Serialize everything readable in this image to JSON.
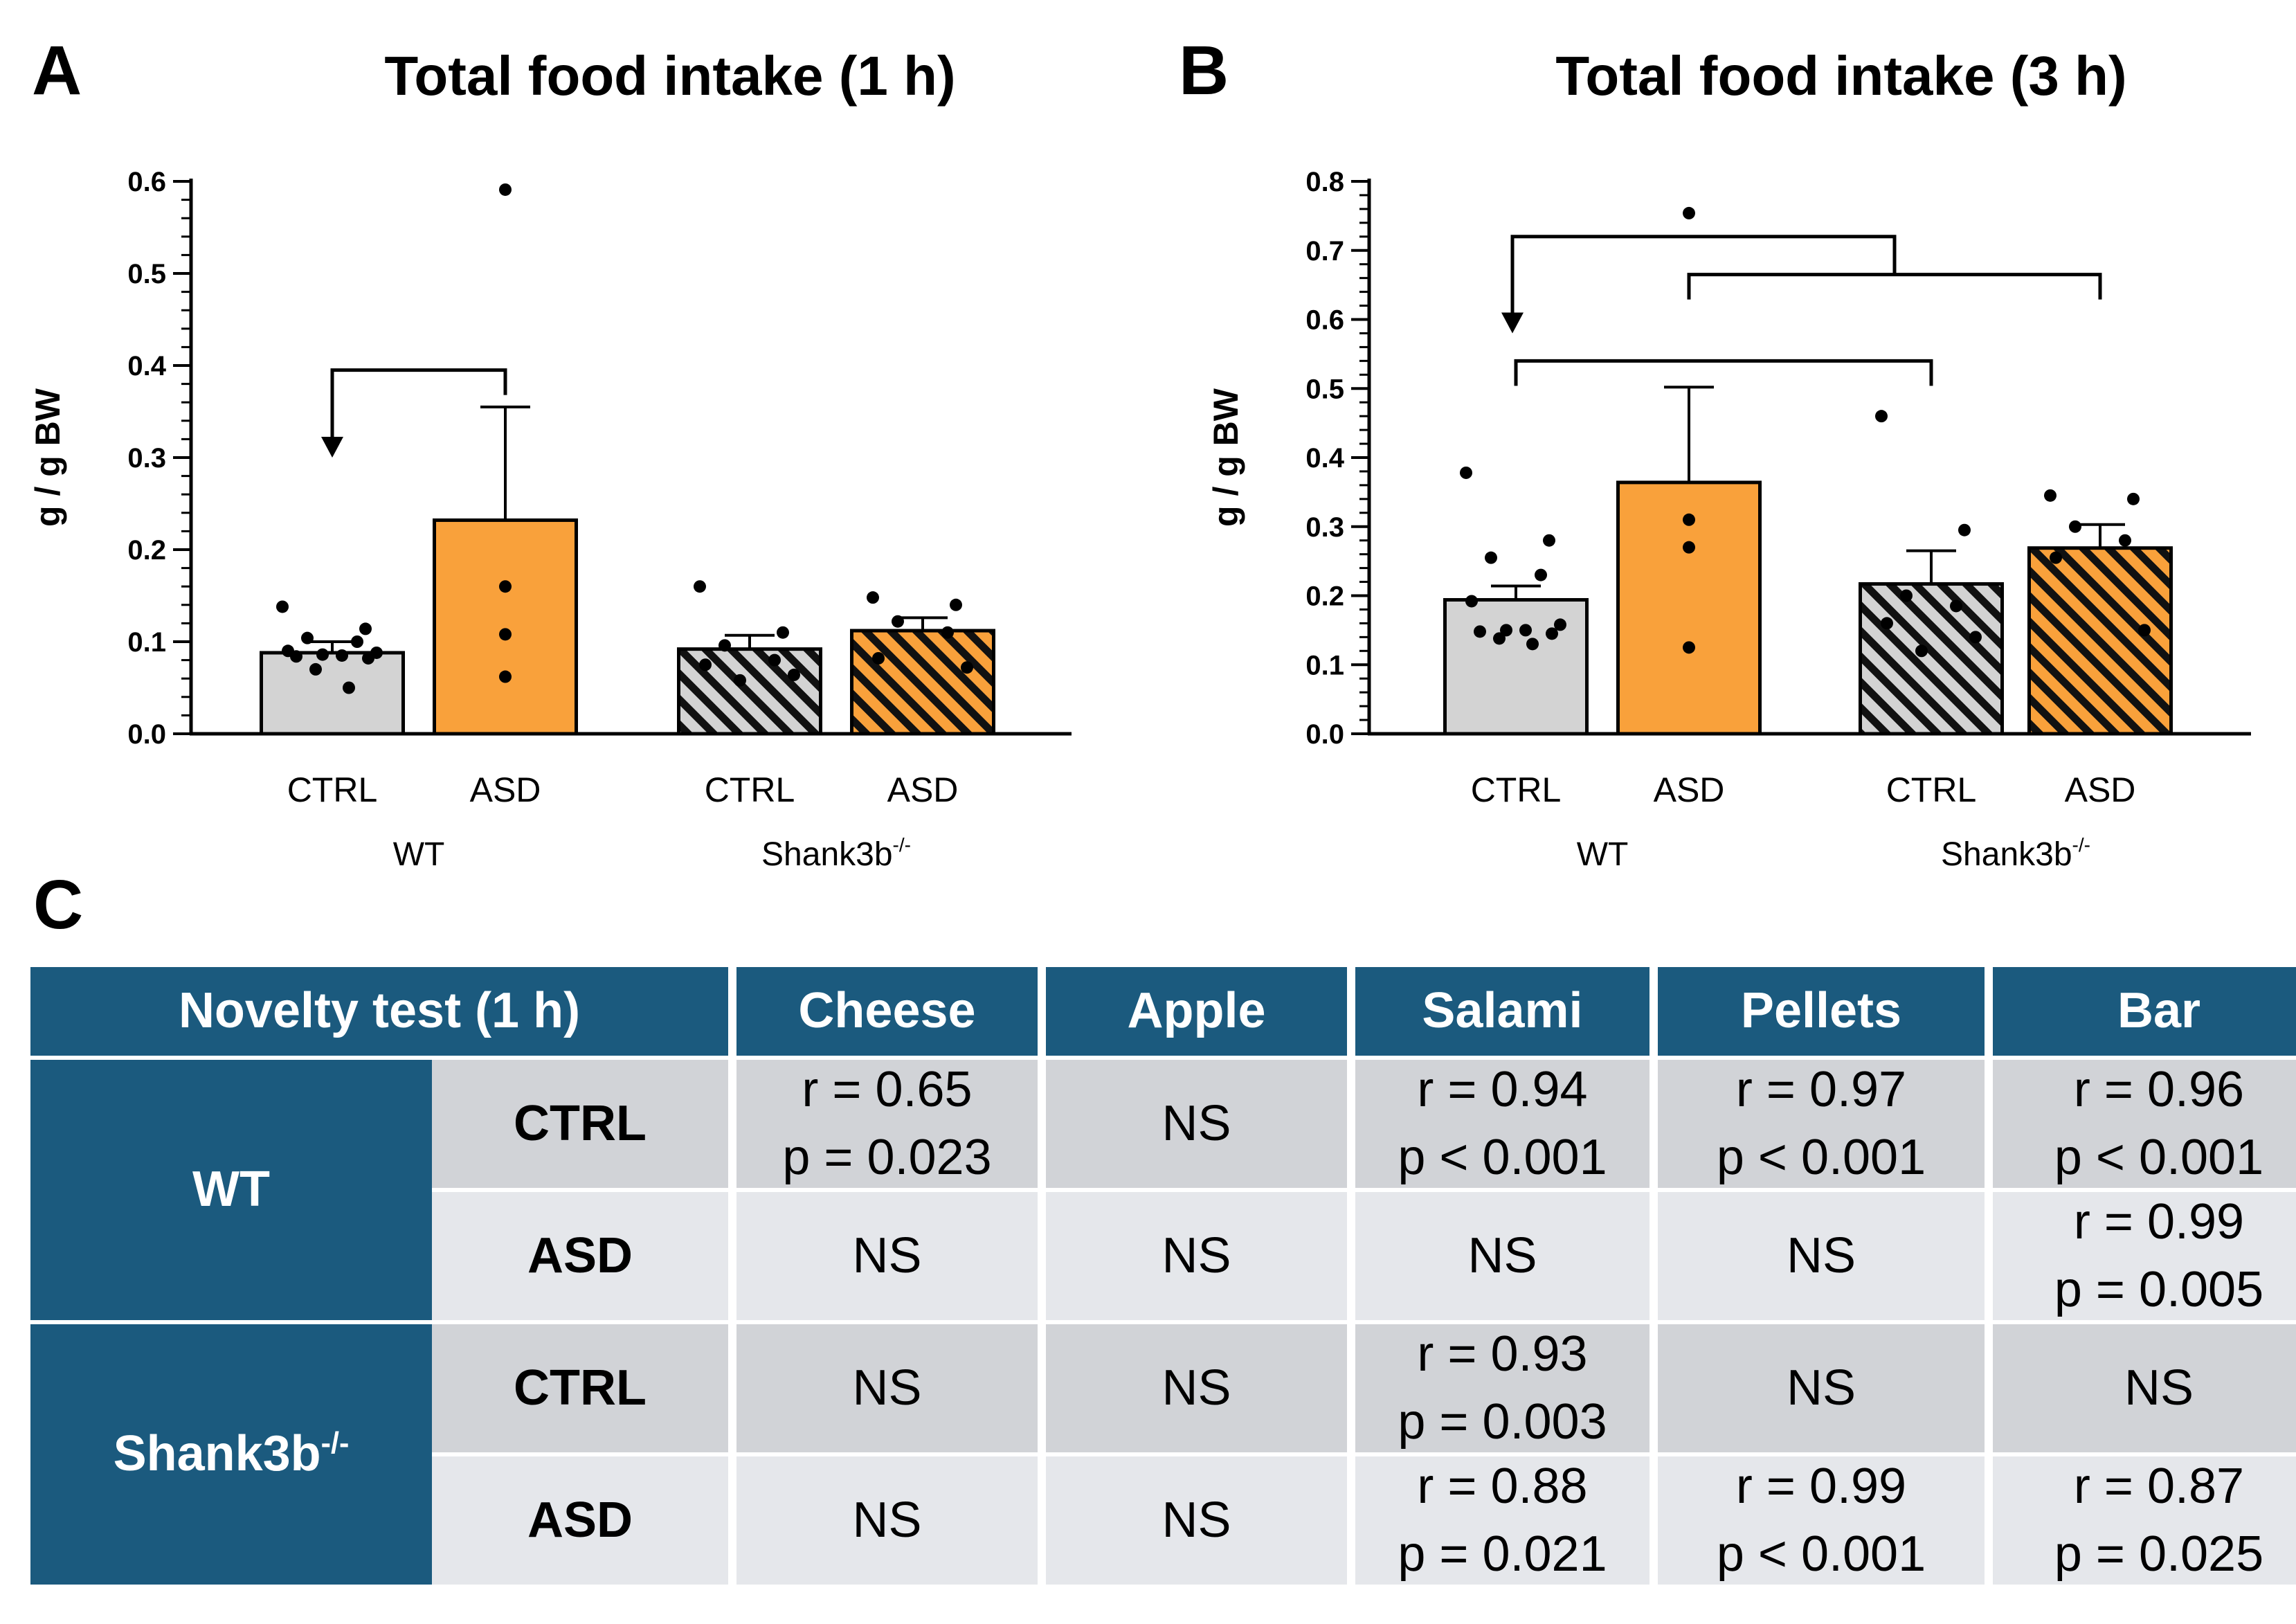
{
  "panels": {
    "a_label": "A",
    "b_label": "B",
    "c_label": "C"
  },
  "chart_data": [
    {
      "type": "bar",
      "panel": "A",
      "title": "Total food intake (1 h)",
      "ylabel": "g / g BW",
      "ylim": [
        0,
        0.6
      ],
      "yticks": [
        0.0,
        0.1,
        0.2,
        0.3,
        0.4,
        0.5,
        0.6
      ],
      "ytick_labels": [
        "0.0",
        "0.1",
        "0.2",
        "0.3",
        "0.4",
        "0.5",
        "0.6"
      ],
      "categories": [
        "CTRL",
        "ASD",
        "CTRL",
        "ASD"
      ],
      "groups": [
        {
          "label": "WT",
          "superscript": ""
        },
        {
          "label": "Shank3b",
          "superscript": "-/-"
        }
      ],
      "values": [
        0.088,
        0.232,
        0.092,
        0.112
      ],
      "errors": [
        0.012,
        0.123,
        0.015,
        0.014
      ],
      "points": [
        [
          0.138,
          0.114,
          0.104,
          0.1,
          0.09,
          0.088,
          0.086,
          0.085,
          0.084,
          0.082,
          0.07,
          0.05
        ],
        [
          0.591,
          0.16,
          0.108,
          0.062
        ],
        [
          0.16,
          0.11,
          0.096,
          0.08,
          0.075,
          0.064,
          0.058
        ],
        [
          0.148,
          0.14,
          0.122,
          0.11,
          0.082,
          0.072
        ]
      ],
      "fills": [
        "#d3d3d3",
        "#f9a13b",
        "#d3d3d3",
        "#f9a13b"
      ],
      "hatched": [
        false,
        false,
        true,
        true
      ],
      "annotations": [
        {
          "type": "bracket-arrow",
          "from_category": 1,
          "to_category": 0,
          "level": 0.395,
          "arrow_tip": 0.3
        }
      ]
    },
    {
      "type": "bar",
      "panel": "B",
      "title": "Total food intake (3 h)",
      "ylabel": "g / g BW",
      "ylim": [
        0,
        0.8
      ],
      "yticks": [
        0.0,
        0.1,
        0.2,
        0.3,
        0.4,
        0.5,
        0.6,
        0.7,
        0.8
      ],
      "ytick_labels": [
        "0.0",
        "0.1",
        "0.2",
        "0.3",
        "0.4",
        "0.5",
        "0.6",
        "0.7",
        "0.8"
      ],
      "categories": [
        "CTRL",
        "ASD",
        "CTRL",
        "ASD"
      ],
      "groups": [
        {
          "label": "WT",
          "superscript": ""
        },
        {
          "label": "Shank3b",
          "superscript": "-/-"
        }
      ],
      "values": [
        0.194,
        0.364,
        0.217,
        0.269
      ],
      "errors": [
        0.02,
        0.138,
        0.048,
        0.034
      ],
      "points": [
        [
          0.378,
          0.28,
          0.255,
          0.23,
          0.192,
          0.158,
          0.15,
          0.15,
          0.148,
          0.145,
          0.138,
          0.13
        ],
        [
          0.754,
          0.31,
          0.27,
          0.125
        ],
        [
          0.46,
          0.295,
          0.2,
          0.185,
          0.16,
          0.14,
          0.12
        ],
        [
          0.345,
          0.34,
          0.3,
          0.28,
          0.255,
          0.15
        ]
      ],
      "fills": [
        "#d3d3d3",
        "#f9a13b",
        "#d3d3d3",
        "#f9a13b"
      ],
      "hatched": [
        false,
        false,
        true,
        true
      ],
      "annotations": [
        {
          "type": "bracket-arrow",
          "from_category": 0,
          "to_category": 2,
          "level": 0.54
        },
        {
          "type": "bracket",
          "from_category": 1,
          "to_category": 3,
          "level": 0.665
        },
        {
          "type": "bracket-arrow",
          "from_category": 1,
          "to_category": 3,
          "level": 0.72,
          "arrow_tip": 0.58,
          "arrow_x_category": 0.5,
          "ends_on": "bracket"
        }
      ]
    }
  ],
  "table": {
    "header": [
      "Novelty test (1 h)",
      "Cheese",
      "Apple",
      "Salami",
      "Pellets",
      "Bar"
    ],
    "groups": [
      {
        "label": "WT",
        "superscript": ""
      },
      {
        "label": "Shank3b",
        "superscript": "-/-"
      }
    ],
    "rows": [
      {
        "group": "WT",
        "sub": "CTRL",
        "cells": [
          [
            "r = 0.65",
            "p = 0.023"
          ],
          [
            "NS"
          ],
          [
            "r = 0.94",
            "p < 0.001"
          ],
          [
            "r = 0.97",
            "p < 0.001"
          ],
          [
            "r = 0.96",
            "p < 0.001"
          ]
        ]
      },
      {
        "group": "WT",
        "sub": "ASD",
        "cells": [
          [
            "NS"
          ],
          [
            "NS"
          ],
          [
            "NS"
          ],
          [
            "NS"
          ],
          [
            "r = 0.99",
            "p = 0.005"
          ]
        ]
      },
      {
        "group": "Shank3b",
        "sub": "CTRL",
        "cells": [
          [
            "NS"
          ],
          [
            "NS"
          ],
          [
            "r = 0.93",
            "p = 0.003"
          ],
          [
            "NS"
          ],
          [
            "NS"
          ]
        ]
      },
      {
        "group": "Shank3b",
        "sub": "ASD",
        "cells": [
          [
            "NS"
          ],
          [
            "NS"
          ],
          [
            "r = 0.88",
            "p = 0.021"
          ],
          [
            "r = 0.99",
            "p < 0.001"
          ],
          [
            "r = 0.87",
            "p = 0.025"
          ]
        ]
      }
    ]
  }
}
